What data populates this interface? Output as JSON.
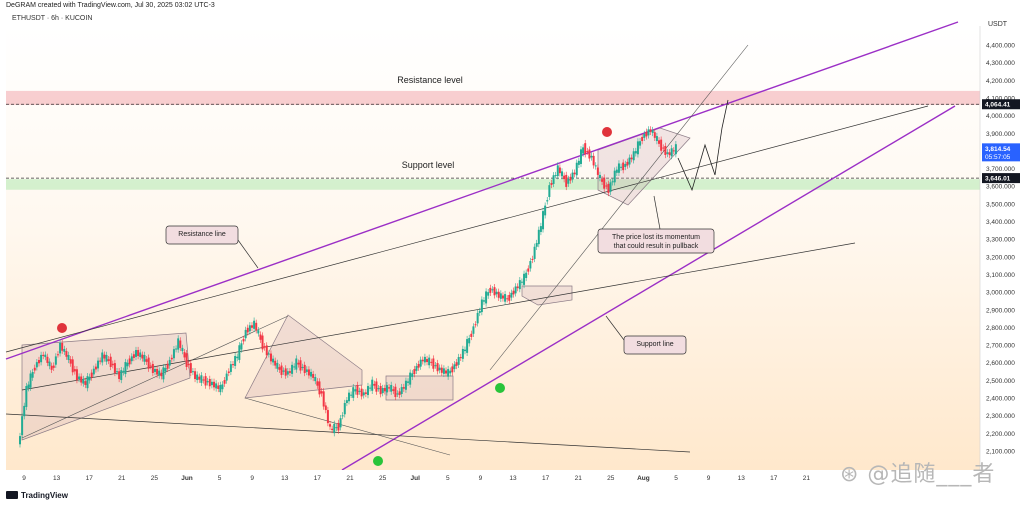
{
  "header": {
    "credit": "DeGRAM created with TradingView.com, Jul 30, 2025 03:02 UTC-3",
    "symbol": "ETHUSDT · 6h · KUCOIN",
    "currency": "USDT"
  },
  "footer": {
    "logo_text": "TradingView"
  },
  "watermark": {
    "text": "⊛ @追随___者"
  },
  "chart_data": {
    "type": "candlestick",
    "title": "",
    "xlabel": "",
    "ylabel": "",
    "ylim": [
      2100,
      4500
    ],
    "y_ticks": [
      2100,
      2200,
      2300,
      2400,
      2500,
      2600,
      2700,
      2800,
      2900,
      3000,
      3100,
      3200,
      3300,
      3400,
      3500,
      3600,
      3700,
      3800,
      3900,
      4000,
      4100,
      4200,
      4300,
      4400
    ],
    "x_ticks": [
      "9",
      "13",
      "17",
      "21",
      "25",
      "Jun",
      "5",
      "9",
      "13",
      "17",
      "21",
      "25",
      "Jul",
      "5",
      "9",
      "13",
      "17",
      "21",
      "25",
      "Aug",
      "5",
      "9",
      "13",
      "17",
      "21"
    ],
    "price_labels": [
      {
        "value": 4064.41,
        "text": "4,064.41",
        "style": "dark"
      },
      {
        "value": 3814.54,
        "text": "3,814.54",
        "sub": "05:57:05",
        "style": "blue"
      },
      {
        "value": 3646.01,
        "text": "3,646.01",
        "style": "dark"
      }
    ],
    "zones": [
      {
        "name": "Resistance level",
        "from": 4060,
        "to": 4140,
        "color": "#f7c6c8"
      },
      {
        "name": "Support level",
        "from": 3580,
        "to": 3640,
        "color": "#cdeec7"
      }
    ],
    "annotations": [
      {
        "text": "Resistance level"
      },
      {
        "text": "Support level"
      },
      {
        "text": "Resistance line"
      },
      {
        "text": "Support line"
      },
      {
        "text": "The price lost its momentum that could result in pullback"
      }
    ],
    "price_path": [
      {
        "t": 0,
        "c": 2120
      },
      {
        "t": 2,
        "c": 2450
      },
      {
        "t": 4,
        "c": 2580
      },
      {
        "t": 6,
        "c": 2650
      },
      {
        "t": 8,
        "c": 2560
      },
      {
        "t": 10,
        "c": 2700
      },
      {
        "t": 12,
        "c": 2620
      },
      {
        "t": 14,
        "c": 2520
      },
      {
        "t": 16,
        "c": 2480
      },
      {
        "t": 18,
        "c": 2560
      },
      {
        "t": 20,
        "c": 2640
      },
      {
        "t": 22,
        "c": 2600
      },
      {
        "t": 24,
        "c": 2520
      },
      {
        "t": 26,
        "c": 2600
      },
      {
        "t": 28,
        "c": 2660
      },
      {
        "t": 30,
        "c": 2620
      },
      {
        "t": 32,
        "c": 2560
      },
      {
        "t": 34,
        "c": 2530
      },
      {
        "t": 36,
        "c": 2610
      },
      {
        "t": 38,
        "c": 2720
      },
      {
        "t": 40,
        "c": 2600
      },
      {
        "t": 42,
        "c": 2520
      },
      {
        "t": 44,
        "c": 2500
      },
      {
        "t": 46,
        "c": 2480
      },
      {
        "t": 48,
        "c": 2450
      },
      {
        "t": 50,
        "c": 2560
      },
      {
        "t": 52,
        "c": 2640
      },
      {
        "t": 54,
        "c": 2780
      },
      {
        "t": 56,
        "c": 2820
      },
      {
        "t": 58,
        "c": 2700
      },
      {
        "t": 60,
        "c": 2620
      },
      {
        "t": 62,
        "c": 2560
      },
      {
        "t": 64,
        "c": 2540
      },
      {
        "t": 66,
        "c": 2600
      },
      {
        "t": 68,
        "c": 2560
      },
      {
        "t": 70,
        "c": 2520
      },
      {
        "t": 72,
        "c": 2420
      },
      {
        "t": 74,
        "c": 2220
      },
      {
        "t": 76,
        "c": 2240
      },
      {
        "t": 78,
        "c": 2400
      },
      {
        "t": 80,
        "c": 2450
      },
      {
        "t": 82,
        "c": 2420
      },
      {
        "t": 84,
        "c": 2480
      },
      {
        "t": 86,
        "c": 2440
      },
      {
        "t": 88,
        "c": 2460
      },
      {
        "t": 90,
        "c": 2420
      },
      {
        "t": 92,
        "c": 2480
      },
      {
        "t": 94,
        "c": 2560
      },
      {
        "t": 96,
        "c": 2620
      },
      {
        "t": 98,
        "c": 2600
      },
      {
        "t": 100,
        "c": 2560
      },
      {
        "t": 102,
        "c": 2540
      },
      {
        "t": 104,
        "c": 2600
      },
      {
        "t": 106,
        "c": 2680
      },
      {
        "t": 108,
        "c": 2800
      },
      {
        "t": 110,
        "c": 2940
      },
      {
        "t": 112,
        "c": 3020
      },
      {
        "t": 114,
        "c": 2980
      },
      {
        "t": 116,
        "c": 2960
      },
      {
        "t": 118,
        "c": 3020
      },
      {
        "t": 120,
        "c": 3080
      },
      {
        "t": 122,
        "c": 3200
      },
      {
        "t": 124,
        "c": 3380
      },
      {
        "t": 126,
        "c": 3600
      },
      {
        "t": 128,
        "c": 3700
      },
      {
        "t": 130,
        "c": 3620
      },
      {
        "t": 132,
        "c": 3680
      },
      {
        "t": 134,
        "c": 3820
      },
      {
        "t": 136,
        "c": 3760
      },
      {
        "t": 138,
        "c": 3640
      },
      {
        "t": 140,
        "c": 3580
      },
      {
        "t": 142,
        "c": 3700
      },
      {
        "t": 144,
        "c": 3720
      },
      {
        "t": 146,
        "c": 3780
      },
      {
        "t": 148,
        "c": 3880
      },
      {
        "t": 150,
        "c": 3920
      },
      {
        "t": 152,
        "c": 3840
      },
      {
        "t": 154,
        "c": 3780
      },
      {
        "t": 156,
        "c": 3814
      }
    ],
    "grid": false,
    "background": "#fff6ea"
  }
}
